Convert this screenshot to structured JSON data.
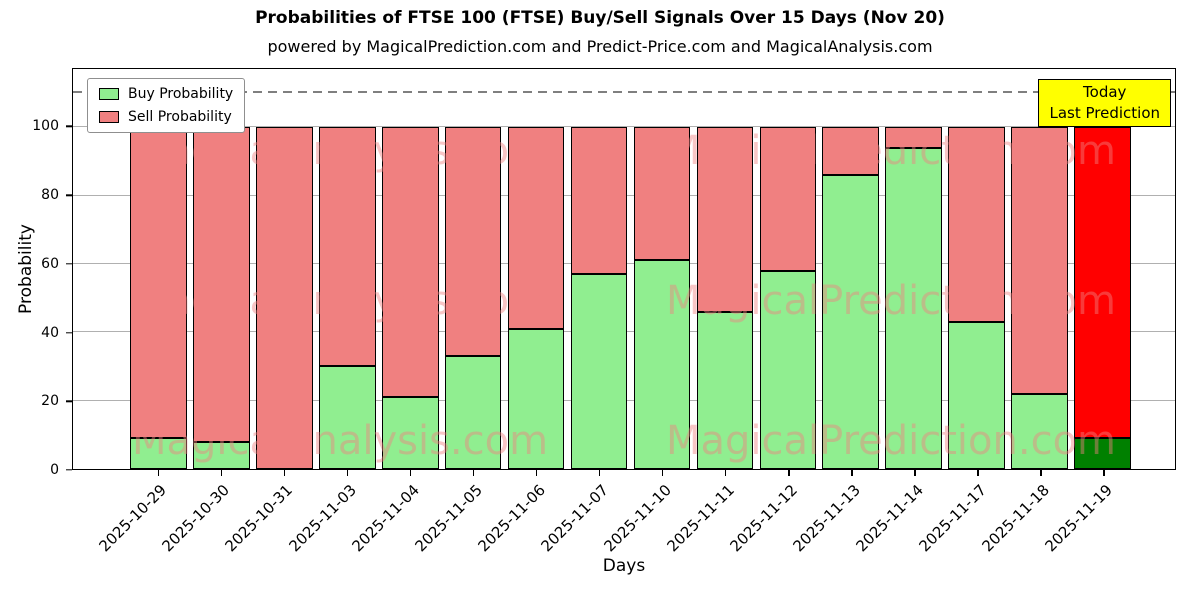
{
  "title": "Probabilities of FTSE 100 (FTSE) Buy/Sell Signals Over 15 Days (Nov 20)",
  "subtitle": "powered by MagicalPrediction.com and Predict-Price.com and MagicalAnalysis.com",
  "legend": {
    "items": [
      {
        "label": "Buy Probability",
        "color": "#90ee90"
      },
      {
        "label": "Sell Probability",
        "color": "#f08080"
      }
    ]
  },
  "annotation_box": {
    "line1": "Today",
    "line2": "Last Prediction",
    "bg_color": "#ffff00"
  },
  "watermarks": {
    "left": "MagicalAnalysis.com",
    "right": "MagicalPrediction.com",
    "color": "rgba(240,128,128,0.45)"
  },
  "chart_data": {
    "type": "bar",
    "stacked": true,
    "title": "Probabilities of FTSE 100 (FTSE) Buy/Sell Signals Over 15 Days (Nov 20)",
    "xlabel": "Days",
    "ylabel": "Probability",
    "ylim": [
      0,
      117
    ],
    "yticks": [
      0,
      20,
      40,
      60,
      80,
      100
    ],
    "grid": true,
    "dashed_line_y": 110,
    "legend_position": "upper left",
    "categories": [
      "2025-10-29",
      "2025-10-30",
      "2025-10-31",
      "2025-11-03",
      "2025-11-04",
      "2025-11-05",
      "2025-11-06",
      "2025-11-07",
      "2025-11-10",
      "2025-11-11",
      "2025-11-12",
      "2025-11-13",
      "2025-11-14",
      "2025-11-17",
      "2025-11-18",
      "2025-11-19"
    ],
    "series": [
      {
        "name": "Buy Probability",
        "values": [
          9,
          8,
          0,
          30,
          21,
          33,
          41,
          57,
          61,
          46,
          58,
          86,
          94,
          43,
          22,
          9
        ]
      },
      {
        "name": "Sell Probability",
        "values": [
          91,
          92,
          100,
          70,
          79,
          67,
          59,
          43,
          39,
          54,
          42,
          14,
          6,
          57,
          78,
          91
        ]
      }
    ],
    "colors": {
      "buy": "#90ee90",
      "sell": "#f08080",
      "last_buy": "#008000",
      "last_sell": "#ff0000",
      "bar_edge": "#000000"
    }
  }
}
